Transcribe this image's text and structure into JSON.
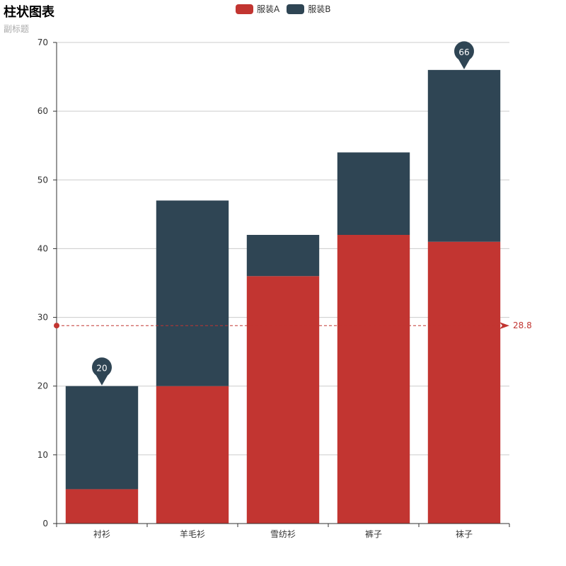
{
  "title": "柱状图表",
  "subtitle": "副标题",
  "colors": {
    "seriesA": "#c23531",
    "seriesB": "#2f4554",
    "grid": "#cccccc",
    "axis": "#333333"
  },
  "legend": [
    {
      "name": "服装A",
      "color": "#c23531"
    },
    {
      "name": "服装B",
      "color": "#2f4554"
    }
  ],
  "chart_data": {
    "type": "bar",
    "stacked": true,
    "categories": [
      "衬衫",
      "羊毛衫",
      "雪纺衫",
      "裤子",
      "袜子"
    ],
    "series": [
      {
        "name": "服装A",
        "values": [
          5,
          20,
          36,
          42,
          41
        ]
      },
      {
        "name": "服装B",
        "values": [
          15,
          27,
          6,
          12,
          25
        ]
      }
    ],
    "ylim": [
      0,
      70
    ],
    "yticks": [
      0,
      10,
      20,
      30,
      40,
      50,
      60,
      70
    ],
    "grid": true,
    "legend_position": "top-center",
    "markers": [
      {
        "category": "衬衫",
        "label": "20"
      },
      {
        "category": "袜子",
        "label": "66"
      }
    ],
    "markline": {
      "value": 28.8,
      "label": "28.8"
    }
  }
}
